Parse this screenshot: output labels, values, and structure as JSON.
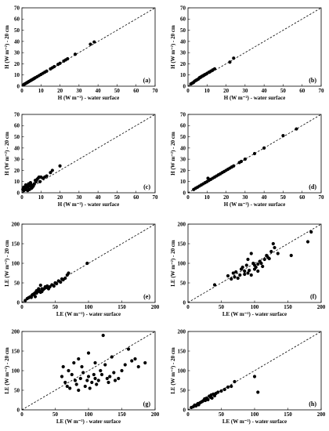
{
  "chart_data": [
    {
      "panel": "(a)",
      "type": "scatter",
      "xlabel": "H (W m⁻²) - water surface",
      "ylabel": "H (W m⁻²) - 20 cm",
      "xlim": [
        0,
        70
      ],
      "ylim": [
        0,
        70
      ],
      "xticks": [
        0,
        10,
        20,
        30,
        40,
        50,
        60,
        70
      ],
      "yticks": [
        0,
        10,
        20,
        30,
        40,
        50,
        60,
        70
      ],
      "reference_line": "1:1 dashed",
      "x": [
        1,
        1.5,
        2,
        2.5,
        3,
        3.5,
        4,
        4.5,
        5,
        5.5,
        6,
        6.5,
        7,
        8,
        9,
        10,
        11,
        12,
        13,
        15,
        16,
        17,
        19,
        20,
        22,
        23,
        24,
        28,
        36,
        38
      ],
      "y": [
        1.5,
        2,
        2.5,
        3,
        3.5,
        4,
        4.5,
        5,
        5.5,
        6,
        6.5,
        7,
        7.5,
        8.5,
        9.5,
        10.5,
        11.5,
        12.5,
        13.5,
        15.5,
        16.5,
        17.5,
        19.5,
        20.5,
        22.5,
        23.5,
        24.5,
        28.5,
        37.5,
        39.5
      ]
    },
    {
      "panel": "(b)",
      "type": "scatter",
      "xlabel": "H (W m⁻²) - water surface",
      "ylabel": "H (W m⁻²) - 20 cm",
      "xlim": [
        0,
        70
      ],
      "ylim": [
        0,
        70
      ],
      "xticks": [
        0,
        10,
        20,
        30,
        40,
        50,
        60,
        70
      ],
      "yticks": [
        0,
        10,
        20,
        30,
        40,
        50,
        60,
        70
      ],
      "reference_line": "1:1 dashed",
      "x": [
        1.5,
        2,
        2.5,
        3,
        3.5,
        4,
        4.5,
        5,
        5.5,
        6,
        6.5,
        7,
        7.5,
        8,
        8.5,
        9,
        10,
        11,
        12,
        13,
        14,
        22,
        24
      ],
      "y": [
        2,
        2.5,
        3,
        3.5,
        4.5,
        5,
        5.5,
        6,
        6.5,
        7.5,
        8,
        8.5,
        9,
        9.5,
        10,
        10.5,
        11.5,
        12.5,
        13.5,
        14.5,
        15.5,
        21.5,
        25
      ]
    },
    {
      "panel": "(c)",
      "type": "scatter",
      "xlabel": "H (W m⁻²) - water surface",
      "ylabel": "H (W m⁻²) - 20 cm",
      "xlim": [
        0,
        70
      ],
      "ylim": [
        0,
        70
      ],
      "xticks": [
        0,
        10,
        20,
        30,
        40,
        50,
        60,
        70
      ],
      "yticks": [
        0,
        10,
        20,
        30,
        40,
        50,
        60,
        70
      ],
      "reference_line": "1:1 dashed",
      "x": [
        0.5,
        1,
        1,
        1.5,
        2,
        2,
        2.5,
        3,
        3,
        3.5,
        4,
        4,
        4.5,
        5,
        5,
        5.5,
        6,
        6.5,
        7,
        7.5,
        8,
        8.5,
        9,
        9.5,
        10,
        11,
        12,
        13,
        15,
        16,
        20
      ],
      "y": [
        3,
        2,
        5,
        4,
        3,
        7,
        6,
        2,
        5,
        8,
        3,
        6,
        9,
        4,
        7,
        5,
        6,
        8,
        11,
        10,
        12,
        13,
        14,
        10,
        14,
        13,
        14,
        15,
        18,
        20,
        24
      ]
    },
    {
      "panel": "(d)",
      "type": "scatter",
      "xlabel": "H (W m⁻²) - water surface",
      "ylabel": "H (W m⁻²) - 20 cm",
      "xlim": [
        0,
        70
      ],
      "ylim": [
        0,
        70
      ],
      "xticks": [
        0,
        10,
        20,
        30,
        40,
        50,
        60,
        70
      ],
      "yticks": [
        0,
        10,
        20,
        30,
        40,
        50,
        60,
        70
      ],
      "reference_line": "1:1 dashed",
      "x": [
        3,
        4,
        5,
        6,
        7,
        8,
        9,
        10,
        10.5,
        11,
        12,
        13,
        14,
        15,
        16,
        17,
        18,
        19,
        20,
        21,
        22,
        23,
        24,
        27,
        28,
        30,
        35,
        40,
        50,
        57
      ],
      "y": [
        3,
        4,
        5,
        6,
        7,
        8,
        9,
        10,
        13,
        11,
        12,
        13,
        14,
        15,
        16,
        17,
        18,
        19,
        20,
        21,
        22,
        23,
        24,
        27,
        28,
        30,
        35,
        40,
        51,
        57
      ]
    },
    {
      "panel": "(e)",
      "type": "scatter",
      "xlabel": "LE (W m⁻²) - water surface",
      "ylabel": "LE (W m⁻²) - 20 cm",
      "xlim": [
        0,
        200
      ],
      "ylim": [
        0,
        200
      ],
      "xticks": [
        0,
        50,
        100,
        150,
        200
      ],
      "yticks": [
        0,
        50,
        100,
        150,
        200
      ],
      "reference_line": "1:1 dashed",
      "x": [
        5,
        8,
        10,
        12,
        14,
        15,
        16,
        18,
        20,
        20,
        22,
        22,
        24,
        25,
        26,
        28,
        28,
        30,
        30,
        32,
        34,
        35,
        36,
        38,
        40,
        42,
        45,
        48,
        50,
        52,
        55,
        58,
        60,
        62,
        65,
        68,
        70,
        98
      ],
      "y": [
        5,
        10,
        12,
        14,
        13,
        18,
        20,
        22,
        15,
        25,
        24,
        30,
        28,
        35,
        30,
        26,
        44,
        28,
        35,
        33,
        36,
        40,
        38,
        42,
        35,
        40,
        45,
        42,
        50,
        48,
        55,
        52,
        60,
        58,
        62,
        70,
        75,
        100
      ]
    },
    {
      "panel": "(f)",
      "type": "scatter",
      "xlabel": "LE (W m⁻²) - water surface",
      "ylabel": "LE (W m⁻²) - 20 cm",
      "xlim": [
        0,
        200
      ],
      "ylim": [
        0,
        200
      ],
      "xticks": [
        0,
        50,
        100,
        150,
        200
      ],
      "yticks": [
        0,
        50,
        100,
        150,
        200
      ],
      "reference_line": "1:1 dashed",
      "x": [
        40,
        60,
        65,
        68,
        70,
        72,
        75,
        78,
        80,
        82,
        85,
        85,
        88,
        90,
        90,
        92,
        95,
        95,
        98,
        100,
        100,
        102,
        105,
        105,
        108,
        110,
        112,
        115,
        118,
        120,
        122,
        125,
        128,
        130,
        135,
        155,
        180,
        185
      ],
      "y": [
        45,
        68,
        60,
        75,
        65,
        78,
        62,
        70,
        85,
        90,
        72,
        80,
        95,
        75,
        110,
        82,
        70,
        125,
        100,
        85,
        95,
        90,
        80,
        98,
        105,
        100,
        92,
        110,
        120,
        115,
        112,
        130,
        150,
        140,
        125,
        120,
        155,
        180
      ]
    },
    {
      "panel": "(g)",
      "type": "scatter",
      "xlabel": "LE (W m⁻²) - water surface",
      "ylabel": "LE (W m⁻²) - 20 cm",
      "xlim": [
        0,
        200
      ],
      "ylim": [
        0,
        200
      ],
      "xticks": [
        0,
        50,
        100,
        150,
        200
      ],
      "yticks": [
        0,
        50,
        100,
        150,
        200
      ],
      "reference_line": "1:1 dashed",
      "x": [
        60,
        62,
        65,
        68,
        70,
        72,
        75,
        78,
        80,
        82,
        85,
        85,
        88,
        90,
        92,
        95,
        98,
        100,
        100,
        102,
        105,
        108,
        110,
        110,
        112,
        115,
        118,
        120,
        122,
        125,
        128,
        130,
        132,
        135,
        138,
        140,
        145,
        150,
        155,
        160,
        165,
        170,
        175,
        185
      ],
      "y": [
        85,
        110,
        70,
        60,
        100,
        55,
        90,
        120,
        75,
        65,
        50,
        130,
        80,
        110,
        95,
        60,
        75,
        85,
        145,
        55,
        70,
        90,
        80,
        120,
        65,
        75,
        100,
        90,
        190,
        115,
        80,
        70,
        85,
        135,
        95,
        75,
        80,
        100,
        115,
        155,
        125,
        130,
        110,
        120
      ]
    },
    {
      "panel": "(h)",
      "type": "scatter",
      "xlabel": "LE (W m⁻²) - water surface",
      "ylabel": "LE (W m⁻²) - 20 cm",
      "xlim": [
        0,
        200
      ],
      "ylim": [
        0,
        200
      ],
      "xticks": [
        0,
        50,
        100,
        150,
        200
      ],
      "yticks": [
        0,
        50,
        100,
        150,
        200
      ],
      "reference_line": "1:1 dashed",
      "x": [
        5,
        8,
        10,
        12,
        14,
        15,
        16,
        18,
        20,
        22,
        24,
        25,
        26,
        28,
        30,
        32,
        34,
        35,
        36,
        38,
        40,
        42,
        45,
        50,
        55,
        60,
        65,
        70,
        100,
        105
      ],
      "y": [
        6,
        8,
        12,
        10,
        14,
        16,
        13,
        18,
        20,
        22,
        25,
        28,
        24,
        30,
        26,
        35,
        32,
        38,
        30,
        40,
        36,
        42,
        45,
        48,
        52,
        58,
        60,
        72,
        85,
        45
      ]
    }
  ]
}
